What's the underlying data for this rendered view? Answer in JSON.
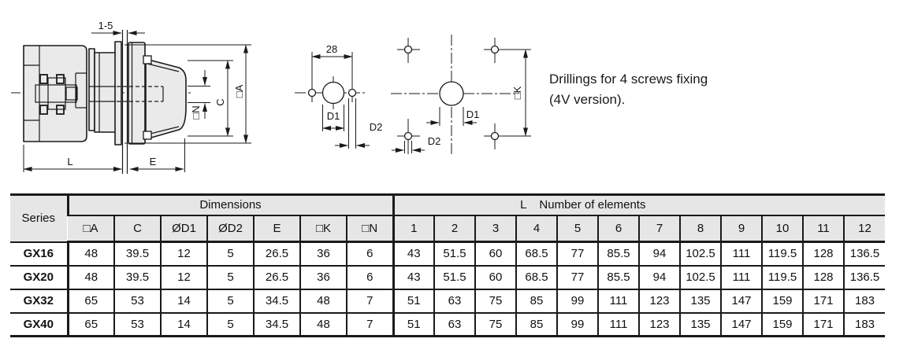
{
  "colors": {
    "line": "#1a1a1a",
    "header_bg": "#e6e6e6",
    "drawing_fill": "#eaeaea"
  },
  "note": {
    "line1": "Drillings for 4 screws fixing",
    "line2": "(4V version)."
  },
  "side_view": {
    "panel_thickness": "1-5",
    "dim_l": "L",
    "dim_e": "E",
    "dim_c": "C",
    "dim_a": "□A",
    "dim_n": "□N"
  },
  "drilling_template": {
    "dim_width": "28",
    "dim_d1": "D1",
    "dim_d2": "D2"
  },
  "drilling_4v": {
    "dim_d1": "D1",
    "dim_d2": "D2",
    "dim_k": "□K"
  },
  "table": {
    "series_header": "Series",
    "dimensions_header": "Dimensions",
    "elements_header_l": "L",
    "elements_header": "Number of elements",
    "dim_columns": [
      "□A",
      "C",
      "ØD1",
      "ØD2",
      "E",
      "□K",
      "□N"
    ],
    "element_columns": [
      "1",
      "2",
      "3",
      "4",
      "5",
      "6",
      "7",
      "8",
      "9",
      "10",
      "11",
      "12"
    ],
    "rows": [
      {
        "series": "GX16",
        "dims": [
          "48",
          "39.5",
          "12",
          "5",
          "26.5",
          "36",
          "6"
        ],
        "lengths": [
          "43",
          "51.5",
          "60",
          "68.5",
          "77",
          "85.5",
          "94",
          "102.5",
          "111",
          "119.5",
          "128",
          "136.5"
        ]
      },
      {
        "series": "GX20",
        "dims": [
          "48",
          "39.5",
          "12",
          "5",
          "26.5",
          "36",
          "6"
        ],
        "lengths": [
          "43",
          "51.5",
          "60",
          "68.5",
          "77",
          "85.5",
          "94",
          "102.5",
          "111",
          "119.5",
          "128",
          "136.5"
        ]
      },
      {
        "series": "GX32",
        "dims": [
          "65",
          "53",
          "14",
          "5",
          "34.5",
          "48",
          "7"
        ],
        "lengths": [
          "51",
          "63",
          "75",
          "85",
          "99",
          "111",
          "123",
          "135",
          "147",
          "159",
          "171",
          "183"
        ]
      },
      {
        "series": "GX40",
        "dims": [
          "65",
          "53",
          "14",
          "5",
          "34.5",
          "48",
          "7"
        ],
        "lengths": [
          "51",
          "63",
          "75",
          "85",
          "99",
          "111",
          "123",
          "135",
          "147",
          "159",
          "171",
          "183"
        ]
      }
    ]
  }
}
